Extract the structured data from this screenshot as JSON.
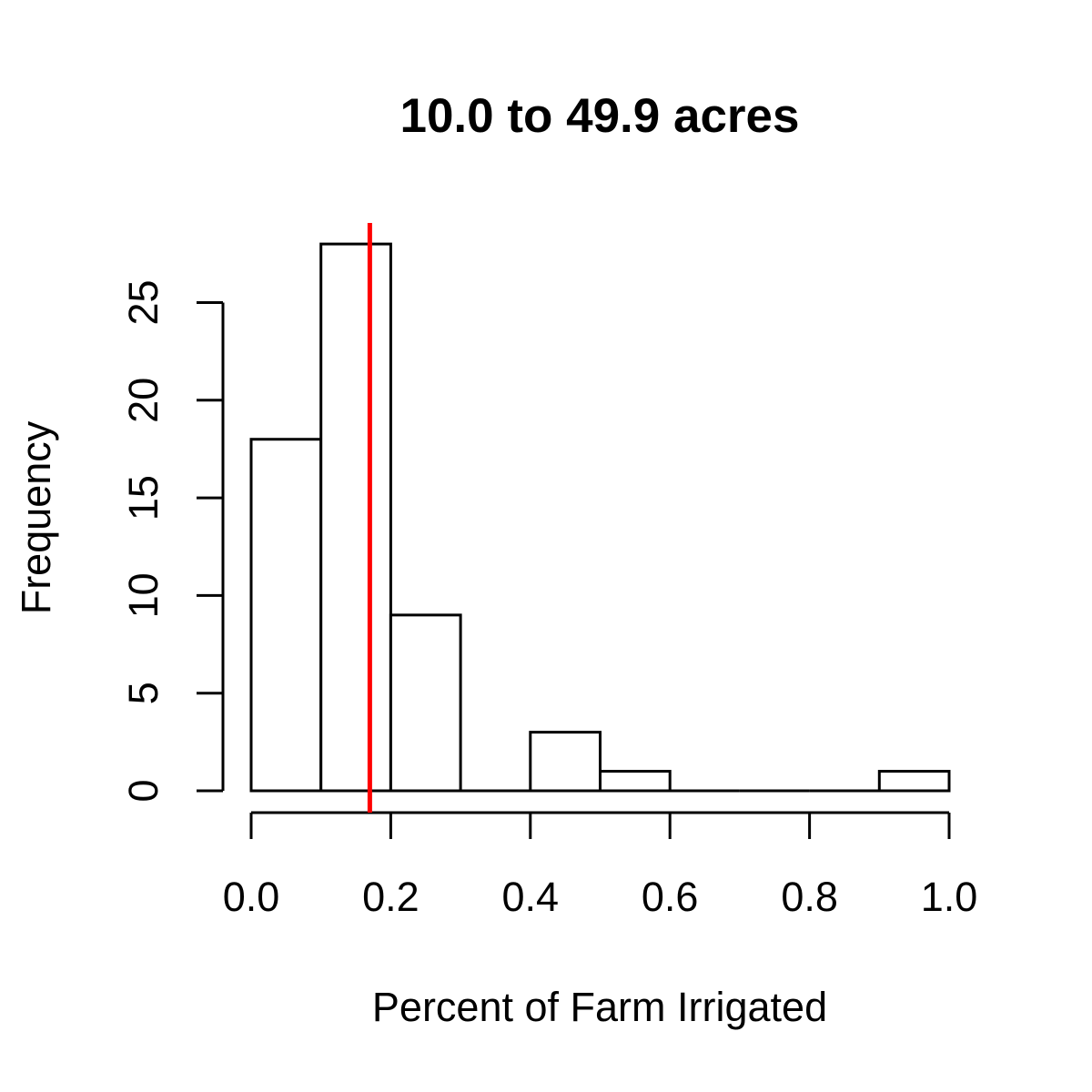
{
  "chart_data": {
    "type": "bar",
    "subtype": "histogram",
    "title": "10.0 to 49.9 acres",
    "xlabel": "Percent of Farm Irrigated",
    "ylabel": "Frequency",
    "bins": [
      {
        "from": 0.0,
        "to": 0.1,
        "count": 18
      },
      {
        "from": 0.1,
        "to": 0.2,
        "count": 28
      },
      {
        "from": 0.2,
        "to": 0.3,
        "count": 9
      },
      {
        "from": 0.3,
        "to": 0.4,
        "count": 0
      },
      {
        "from": 0.4,
        "to": 0.5,
        "count": 3
      },
      {
        "from": 0.5,
        "to": 0.6,
        "count": 1
      },
      {
        "from": 0.6,
        "to": 0.7,
        "count": 0
      },
      {
        "from": 0.7,
        "to": 0.8,
        "count": 0
      },
      {
        "from": 0.8,
        "to": 0.9,
        "count": 0
      },
      {
        "from": 0.9,
        "to": 1.0,
        "count": 1
      }
    ],
    "xlim": [
      0.0,
      1.0
    ],
    "ylim": [
      0,
      28
    ],
    "x_ticks": [
      0.0,
      0.2,
      0.4,
      0.6,
      0.8,
      1.0
    ],
    "x_tick_labels": [
      "0.0",
      "0.2",
      "0.4",
      "0.6",
      "0.8",
      "1.0"
    ],
    "y_ticks": [
      0,
      5,
      10,
      15,
      20,
      25
    ],
    "y_tick_labels": [
      "0",
      "5",
      "10",
      "15",
      "20",
      "25"
    ],
    "reference_line": {
      "orientation": "vertical",
      "x": 0.17,
      "color": "#ff0000"
    },
    "bar_fill": "#ffffff",
    "bar_stroke": "#000000",
    "grid": false
  }
}
